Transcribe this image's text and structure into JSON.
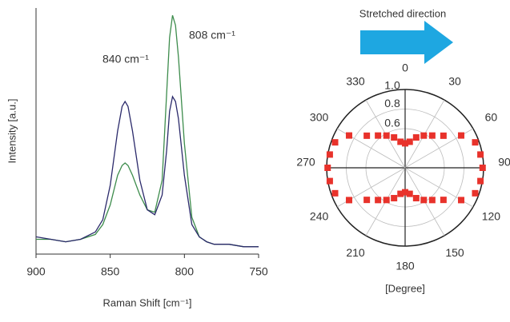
{
  "chart_data": [
    {
      "type": "line",
      "x_label": "Raman Shift [cm⁻¹]",
      "y_label": "Intensity [a.u.]",
      "annotations": [
        "840 cm⁻¹",
        "808 cm⁻¹"
      ],
      "x": [
        900,
        890,
        880,
        870,
        860,
        855,
        850,
        845,
        842,
        840,
        838,
        835,
        830,
        825,
        820,
        815,
        812,
        810,
        808,
        806,
        804,
        800,
        795,
        790,
        785,
        780,
        770,
        760,
        750
      ],
      "xlim": [
        900,
        750
      ],
      "xticks": [
        900,
        850,
        800,
        750
      ],
      "ylim": [
        0,
        1
      ],
      "series": [
        {
          "color": "#3d8c4c",
          "values": [
            0.06,
            0.06,
            0.05,
            0.06,
            0.08,
            0.12,
            0.2,
            0.32,
            0.36,
            0.37,
            0.36,
            0.32,
            0.24,
            0.18,
            0.17,
            0.3,
            0.65,
            0.88,
            0.97,
            0.93,
            0.8,
            0.45,
            0.15,
            0.07,
            0.05,
            0.04,
            0.04,
            0.03,
            0.03
          ]
        },
        {
          "color": "#2b2a6b",
          "values": [
            0.07,
            0.06,
            0.05,
            0.06,
            0.09,
            0.14,
            0.28,
            0.5,
            0.6,
            0.62,
            0.6,
            0.5,
            0.3,
            0.18,
            0.16,
            0.24,
            0.42,
            0.58,
            0.64,
            0.62,
            0.55,
            0.32,
            0.12,
            0.07,
            0.05,
            0.04,
            0.04,
            0.03,
            0.03
          ]
        }
      ]
    },
    {
      "type": "polar",
      "title": "Stretched direction",
      "x_label": "[Degree]",
      "color": "#e8322b",
      "theta": [
        0,
        10,
        20,
        30,
        40,
        50,
        60,
        70,
        80,
        90,
        100,
        110,
        120,
        130,
        140,
        150,
        160,
        170,
        180,
        190,
        200,
        210,
        220,
        230,
        240,
        250,
        260,
        270,
        280,
        290,
        300,
        310,
        320,
        330,
        340,
        350
      ],
      "values": [
        0.45,
        0.47,
        0.53,
        0.58,
        0.63,
        0.71,
        0.86,
        0.96,
        0.98,
        0.99,
        0.98,
        0.96,
        0.86,
        0.71,
        0.63,
        0.58,
        0.53,
        0.47,
        0.45,
        0.47,
        0.53,
        0.58,
        0.63,
        0.71,
        0.86,
        0.96,
        0.98,
        0.99,
        0.98,
        0.96,
        0.86,
        0.71,
        0.63,
        0.58,
        0.53,
        0.47
      ],
      "rlim": [
        0.2,
        1.0
      ],
      "rticks": [
        0.6,
        0.8,
        {
          "value": 1,
          "label": "1.0"
        }
      ],
      "thetaticks": [
        0,
        30,
        60,
        90,
        120,
        150,
        180,
        210,
        240,
        270,
        300,
        330
      ]
    }
  ]
}
